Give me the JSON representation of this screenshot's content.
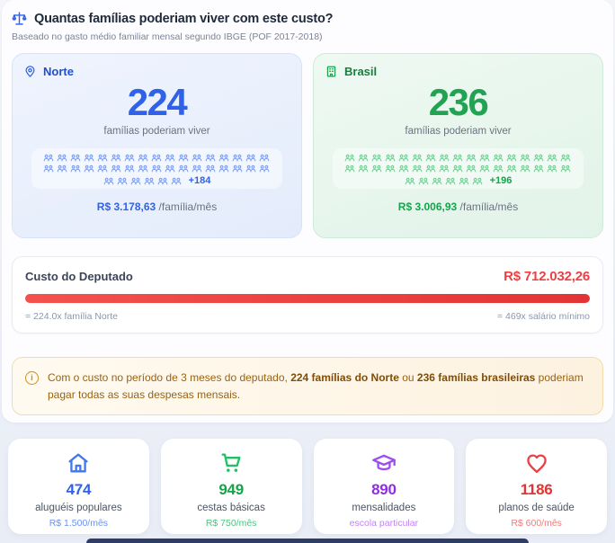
{
  "header": {
    "icon": "scales-icon",
    "title": "Quantas famílias poderiam viver com este custo?",
    "subtitle": "Baseado no gasto médio familiar mensal segundo IBGE (POF 2017-2018)"
  },
  "region_cards": {
    "norte": {
      "icon": "map-pin-icon",
      "label": "Norte",
      "count": "224",
      "count_caption": "famílias poderiam viver",
      "icon_rows": [
        17,
        17,
        6
      ],
      "more_label": "+184",
      "price": "R$ 3.178,63",
      "price_unit": " /família/mês",
      "accent": "#2f62e9"
    },
    "brasil": {
      "icon": "building-icon",
      "label": "Brasil",
      "count": "236",
      "count_caption": "famílias poderiam viver",
      "icon_rows": [
        17,
        17,
        6
      ],
      "more_label": "+196",
      "price": "R$ 3.006,93",
      "price_unit": " /família/mês",
      "accent": "#17a34a"
    }
  },
  "cost_card": {
    "title": "Custo do Deputado",
    "value": "R$ 712.032,26",
    "bar_color": "#e23434",
    "left_note": "= 224.0x família Norte",
    "right_note": "= 469x salário mínimo"
  },
  "info_box": {
    "icon": "info-icon",
    "icon_glyph": "i",
    "text_1": "Com o custo no período de 3 meses do deputado, ",
    "bold_1": "224 famílias do Norte",
    "text_2": " ou ",
    "bold_2": "236 famílias brasileiras",
    "text_3": " poderiam pagar todas as suas despesas mensais."
  },
  "stats": {
    "items": [
      {
        "icon": "home-icon",
        "value": "474",
        "label": "aluguéis populares",
        "sub": "R$ 1.500/mês",
        "accent": "#2f62e9"
      },
      {
        "icon": "shopping-cart-icon",
        "value": "949",
        "label": "cestas básicas",
        "sub": "R$ 750/mês",
        "accent": "#17a34a"
      },
      {
        "icon": "graduation-cap-icon",
        "value": "890",
        "label": "mensalidades",
        "sub": "escola particular",
        "accent": "#8e2de2"
      },
      {
        "icon": "heart-icon",
        "value": "1186",
        "label": "planos de saúde",
        "sub": "R$ 600/mês",
        "accent": "#e23434"
      }
    ]
  }
}
